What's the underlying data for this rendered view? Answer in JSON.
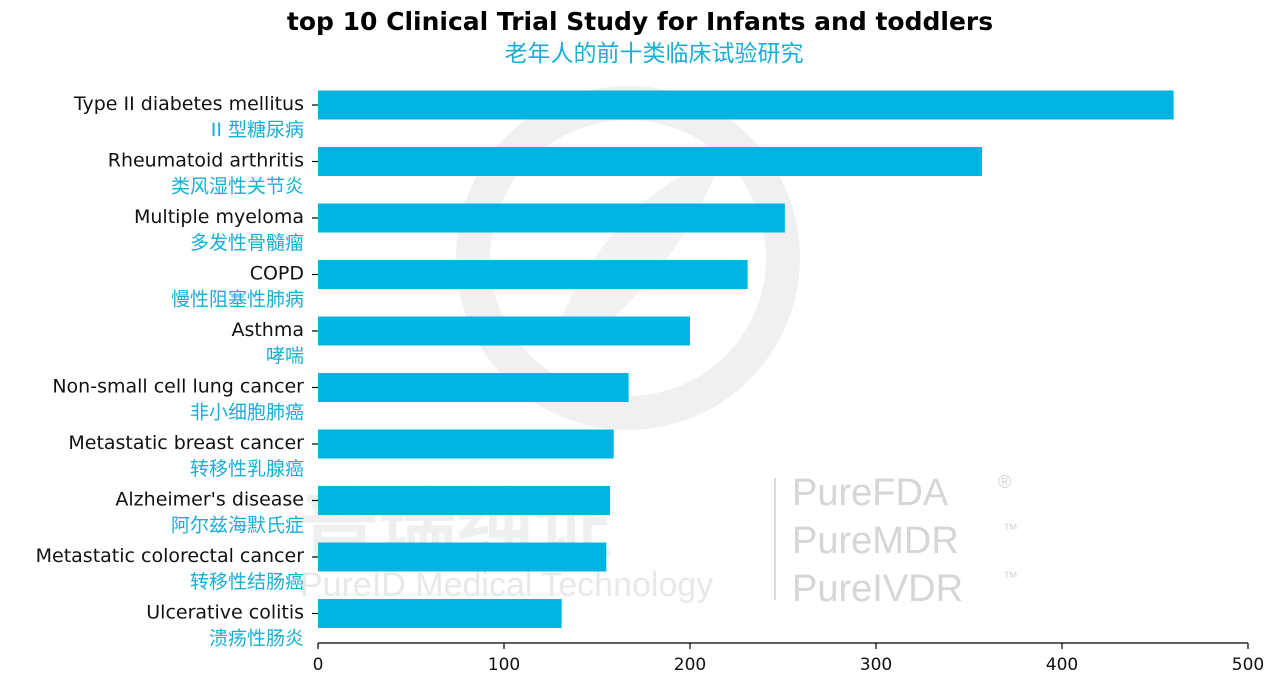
{
  "watermark": {
    "company_cn": "普瑞纯证",
    "company_en": "PureID Medical Technology",
    "brands": [
      "PureFDA",
      "PureMDR",
      "PureIVDR"
    ],
    "marks": [
      "®",
      "™",
      "™"
    ],
    "color": "#d6d6d6"
  },
  "chart_data": {
    "type": "bar",
    "orientation": "horizontal",
    "title": "top 10 Clinical Trial Study for Infants and toddlers",
    "subtitle": "老年人的前十类临床试验研究",
    "categories": [
      "Type II diabetes mellitus",
      "Rheumatoid arthritis",
      "Multiple myeloma",
      "COPD",
      "Asthma",
      "Non-small cell lung cancer",
      "Metastatic breast cancer",
      "Alzheimer's disease",
      "Metastatic colorectal cancer",
      "Ulcerative colitis"
    ],
    "categories_cn": [
      "II 型糖尿病",
      "类风湿性关节炎",
      "多发性骨髓瘤",
      "慢性阻塞性肺病",
      "哮喘",
      "非小细胞肺癌",
      "转移性乳腺癌",
      "阿尔兹海默氏症",
      "转移性结肠癌",
      "溃疡性肠炎"
    ],
    "values": [
      460,
      357,
      251,
      231,
      200,
      167,
      159,
      157,
      155,
      131
    ],
    "xlim": [
      0,
      500
    ],
    "xticks": [
      0,
      100,
      200,
      300,
      400,
      500
    ],
    "xlabel": "",
    "ylabel": "",
    "grid": false,
    "bar_color": "#00b4e2",
    "title_color": "#000000",
    "subtitle_color": "#1aaed6",
    "cn_label_color": "#1aaed6"
  }
}
